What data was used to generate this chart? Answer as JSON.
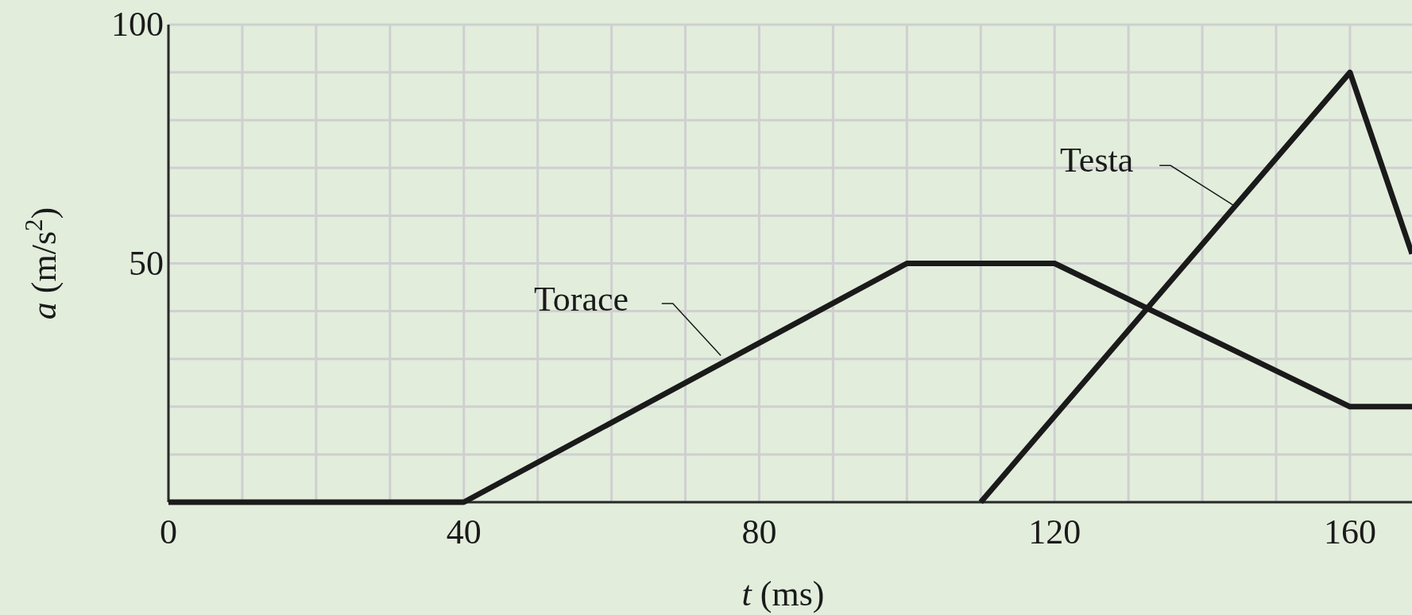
{
  "chart_data": {
    "type": "line",
    "xlabel": "t (ms)",
    "ylabel": "a (m/s$^{2}$)",
    "xlim": [
      0,
      168.4
    ],
    "ylim": [
      0,
      100
    ],
    "xticks": [
      0,
      {
        "value": 10,
        "label": null
      },
      {
        "value": 20,
        "label": null
      },
      {
        "value": 30,
        "label": null
      },
      40,
      {
        "value": 50,
        "label": null
      },
      {
        "value": 60,
        "label": null
      },
      {
        "value": 70,
        "label": null
      },
      80,
      {
        "value": 90,
        "label": null
      },
      {
        "value": 100,
        "label": null
      },
      {
        "value": 110,
        "label": null
      },
      120,
      {
        "value": 130,
        "label": null
      },
      {
        "value": 140,
        "label": null
      },
      {
        "value": 150,
        "label": null
      },
      160
    ],
    "yticks": [
      {
        "value": 0,
        "label": null
      },
      {
        "value": 10,
        "label": null
      },
      {
        "value": 20,
        "label": null
      },
      {
        "value": 30,
        "label": null
      },
      {
        "value": 40,
        "label": null
      },
      50,
      {
        "value": 60,
        "label": null
      },
      {
        "value": 70,
        "label": null
      },
      {
        "value": 80,
        "label": null
      },
      {
        "value": 90,
        "label": null
      },
      100
    ],
    "grid": true,
    "series": [
      {
        "name": "Torace",
        "color": "#1a1a1a",
        "x": [
          0,
          40,
          100,
          120,
          160,
          168.4
        ],
        "values": [
          0,
          0,
          50,
          50,
          20,
          20
        ]
      },
      {
        "name": "Testa",
        "color": "#1a1a1a",
        "x": [
          110,
          160,
          168.4
        ],
        "values": [
          0,
          90,
          52
        ]
      }
    ]
  }
}
